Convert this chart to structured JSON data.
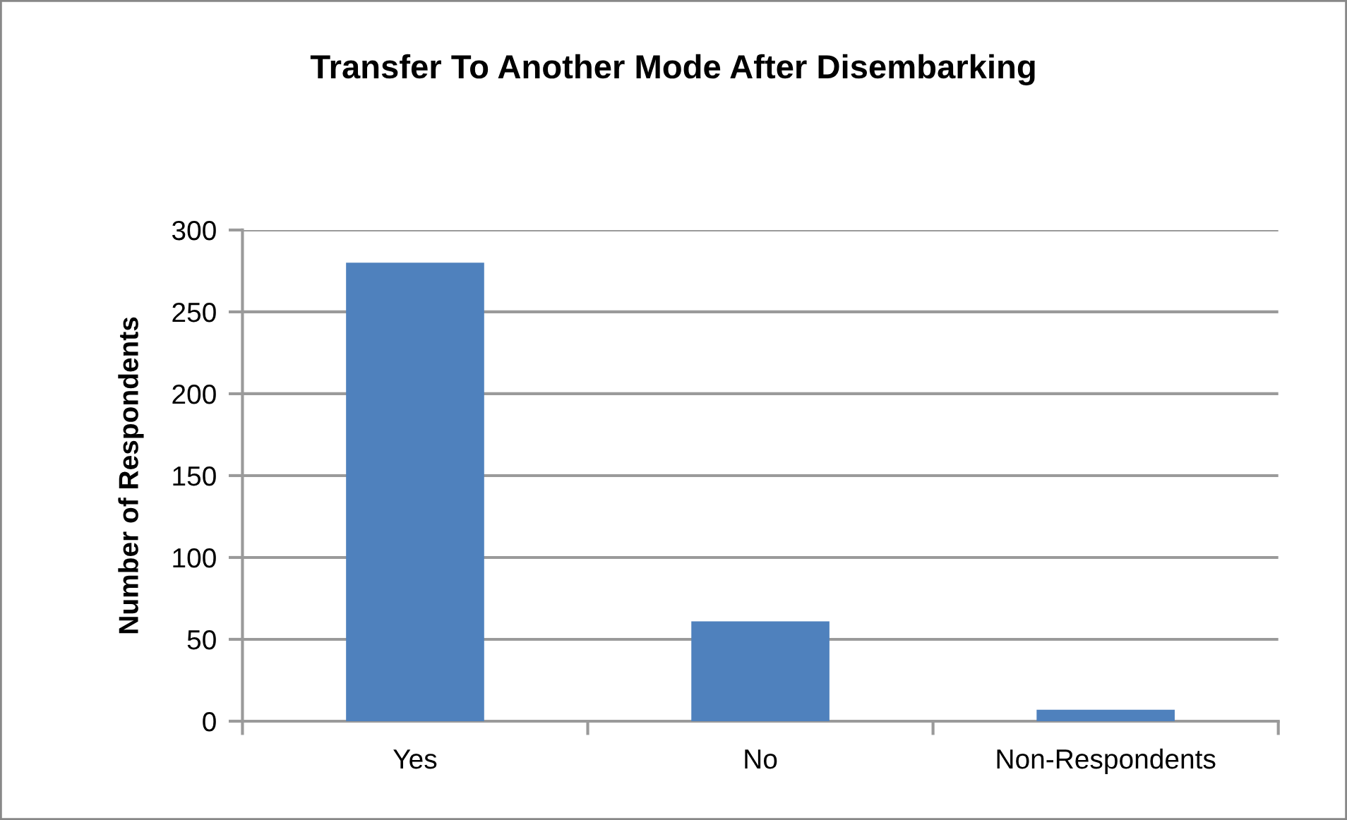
{
  "chart_data": {
    "type": "bar",
    "title": "Transfer To Another Mode After Disembarking",
    "ylabel": "Number of Respondents",
    "categories": [
      "Yes",
      "No",
      "Non-Respondents"
    ],
    "values": [
      280,
      61,
      7
    ],
    "color": "#4f81bd",
    "ylim": [
      0,
      300
    ],
    "yticks": [
      0,
      50,
      100,
      150,
      200,
      250,
      300
    ],
    "grid": "y"
  }
}
